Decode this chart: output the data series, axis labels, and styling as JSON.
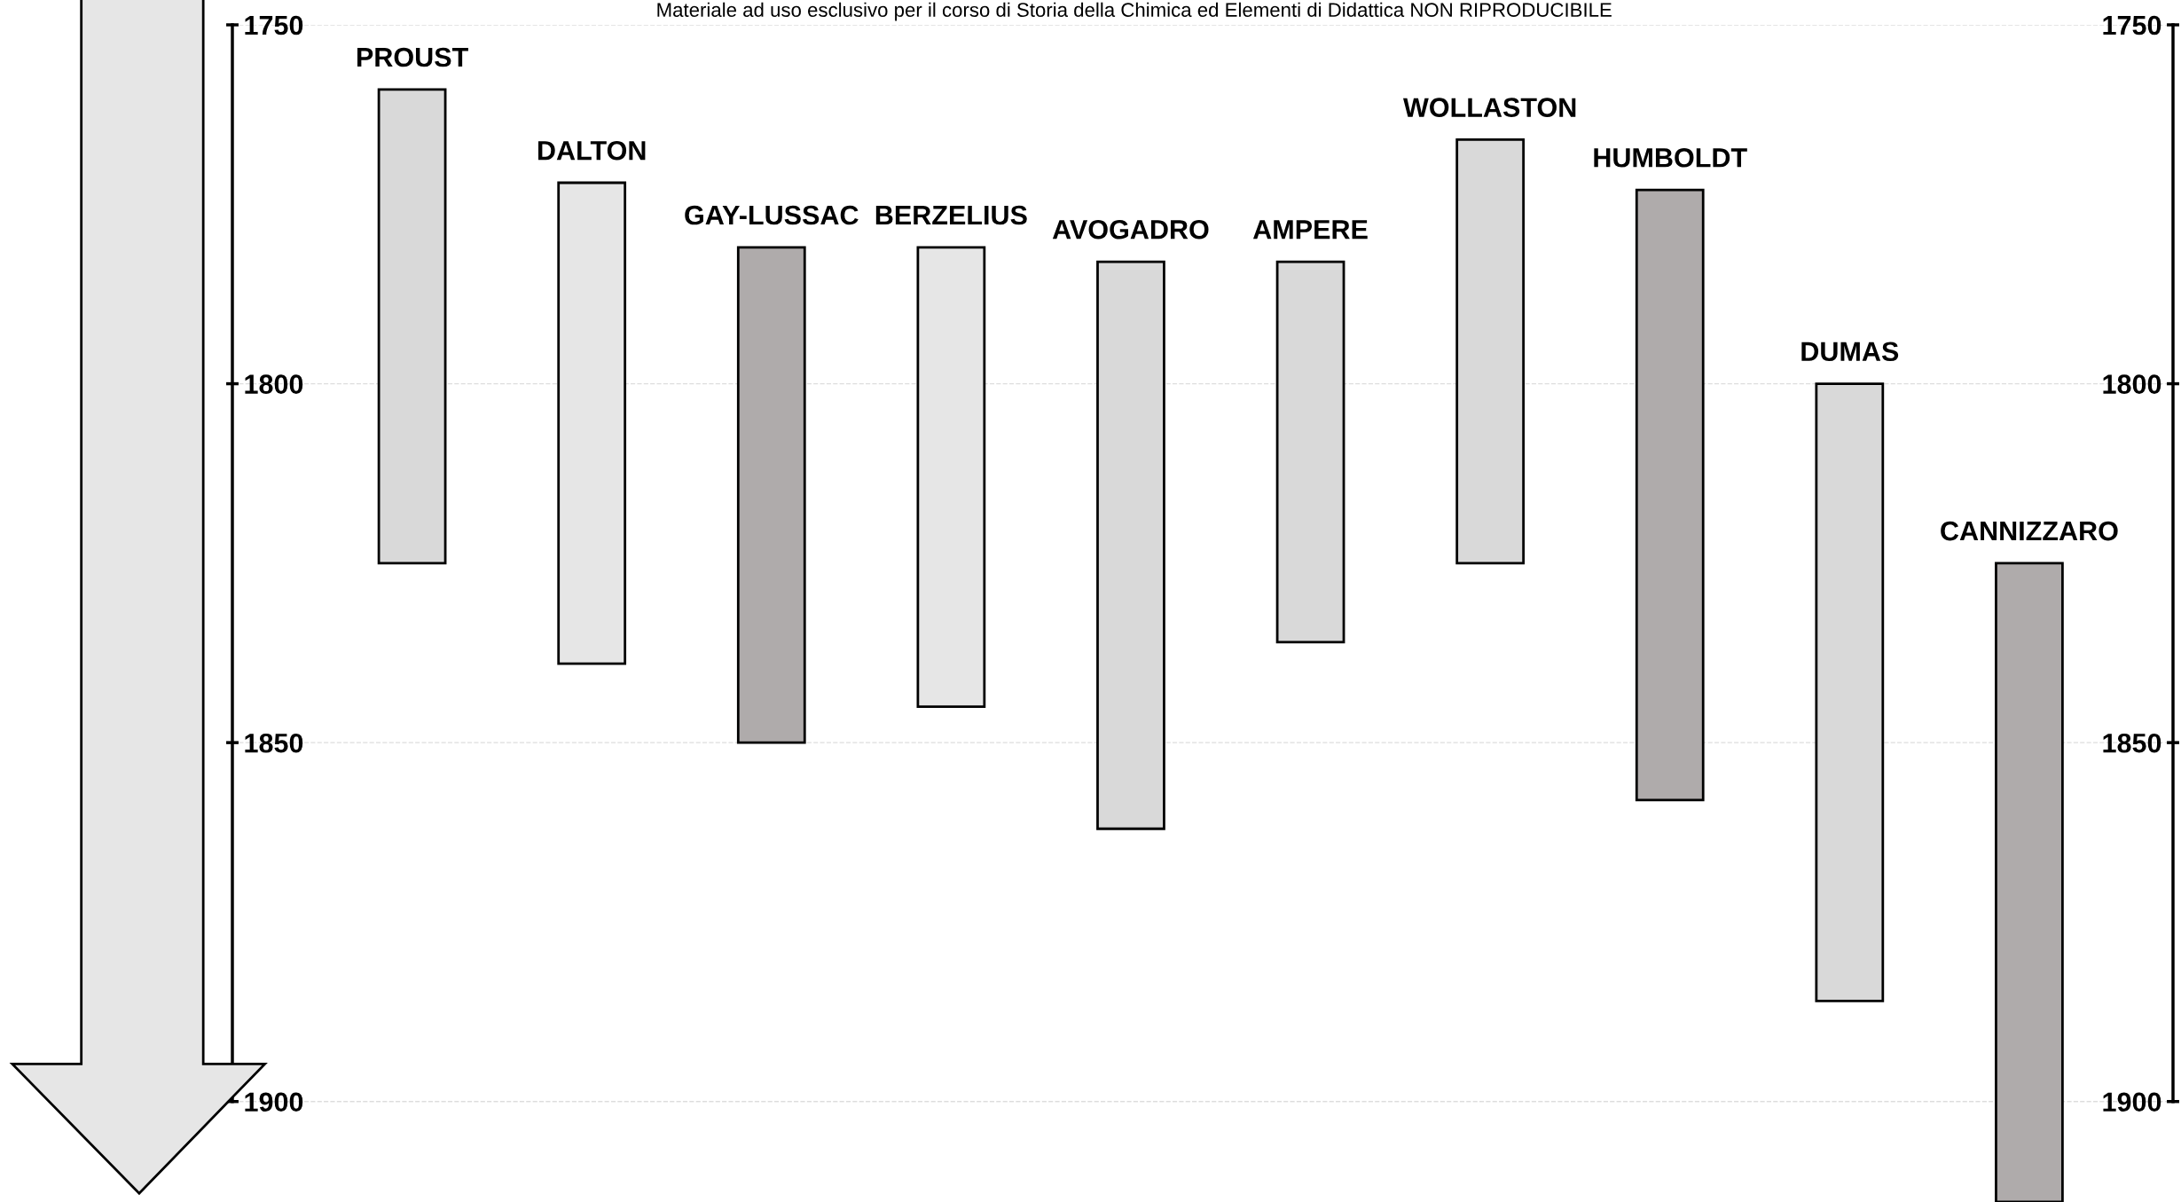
{
  "chart_data": {
    "type": "bar",
    "categories": [
      "PROUST",
      "DALTON",
      "GAY-LUSSAC",
      "BERZELIUS",
      "AVOGADRO",
      "AMPERE",
      "WOLLASTON",
      "HUMBOLDT",
      "DUMAS",
      "CANNIZZARO"
    ],
    "base": [
      1759,
      1772,
      1781,
      1781,
      1783,
      1783,
      1766,
      1773,
      1800,
      1825
    ],
    "values": [
      66,
      67,
      69,
      64,
      79,
      53,
      59,
      85,
      86,
      89
    ],
    "colors": [
      "#d9d9d9",
      "#e6e6e6",
      "#afabab",
      "#e6e6e6",
      "#d9d9d9",
      "#d9d9d9",
      "#d9d9d9",
      "#afabab",
      "#d9d9d9",
      "#afabab"
    ],
    "ylim": [
      1914,
      1750
    ],
    "yticks": [
      1750,
      1800,
      1850,
      1900
    ],
    "y2lim": [
      1914,
      1750
    ],
    "y2ticks": [
      1750,
      1800,
      1850,
      1900
    ],
    "grid": "y",
    "annotations": [
      "Materiale ad uso esclusivo per il corso di Storia della Chimica ed Elementi di Didattica NON RIPRODUCIBILE"
    ]
  }
}
